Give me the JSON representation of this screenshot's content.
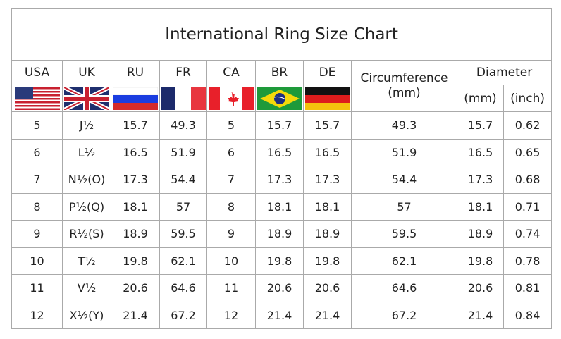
{
  "title": "International Ring Size Chart",
  "headers": {
    "usa": "USA",
    "uk": "UK",
    "ru": "RU",
    "fr": "FR",
    "ca": "CA",
    "br": "BR",
    "de": "DE",
    "circumference": "Circumference",
    "circumference_unit": "(mm)",
    "diameter": "Diameter",
    "diameter_mm": "(mm)",
    "diameter_inch": "(inch)"
  },
  "flags": [
    "usa-flag-icon",
    "uk-flag-icon",
    "russia-flag-icon",
    "france-flag-icon",
    "canada-flag-icon",
    "brazil-flag-icon",
    "germany-flag-icon"
  ],
  "rows": [
    [
      "5",
      "J½",
      "15.7",
      "49.3",
      "5",
      "15.7",
      "15.7",
      "49.3",
      "15.7",
      "0.62"
    ],
    [
      "6",
      "L½",
      "16.5",
      "51.9",
      "6",
      "16.5",
      "16.5",
      "51.9",
      "16.5",
      "0.65"
    ],
    [
      "7",
      "N½(O)",
      "17.3",
      "54.4",
      "7",
      "17.3",
      "17.3",
      "54.4",
      "17.3",
      "0.68"
    ],
    [
      "8",
      "P½(Q)",
      "18.1",
      "57",
      "8",
      "18.1",
      "18.1",
      "57",
      "18.1",
      "0.71"
    ],
    [
      "9",
      "R½(S)",
      "18.9",
      "59.5",
      "9",
      "18.9",
      "18.9",
      "59.5",
      "18.9",
      "0.74"
    ],
    [
      "10",
      "T½",
      "19.8",
      "62.1",
      "10",
      "19.8",
      "19.8",
      "62.1",
      "19.8",
      "0.78"
    ],
    [
      "11",
      "V½",
      "20.6",
      "64.6",
      "11",
      "20.6",
      "20.6",
      "64.6",
      "20.6",
      "0.81"
    ],
    [
      "12",
      "X½(Y)",
      "21.4",
      "67.2",
      "12",
      "21.4",
      "21.4",
      "67.2",
      "21.4",
      "0.84"
    ]
  ]
}
